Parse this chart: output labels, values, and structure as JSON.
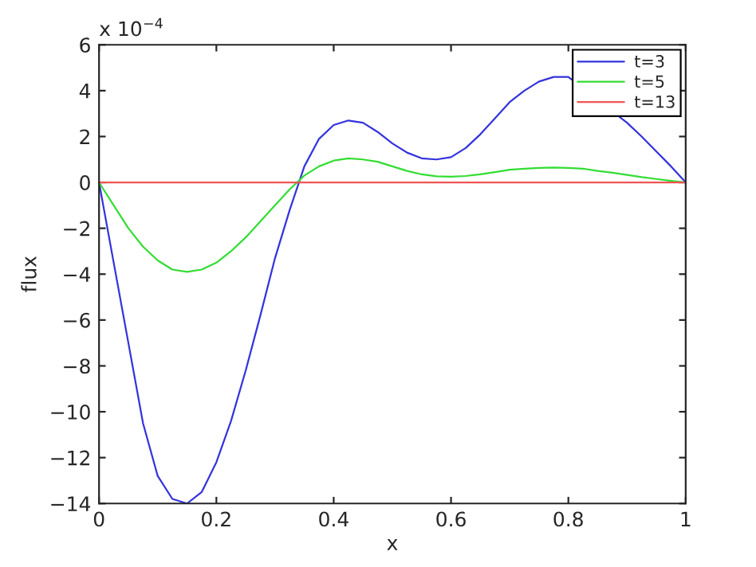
{
  "chart_data": {
    "type": "line",
    "xlabel": "x",
    "ylabel": "flux",
    "annotations": [
      "x 10$^{−4}$"
    ],
    "xlim": [
      0,
      1
    ],
    "xticks": [
      0,
      0.2,
      0.4,
      0.6,
      0.8,
      1
    ],
    "ylim": [
      -14,
      6
    ],
    "yticks": [
      {
        "value": -14,
        "label": "−14"
      },
      {
        "value": -12,
        "label": "−12"
      },
      {
        "value": -10,
        "label": "−10"
      },
      {
        "value": -8,
        "label": "−8"
      },
      {
        "value": -6,
        "label": "−6"
      },
      {
        "value": -4,
        "label": "−4"
      },
      {
        "value": -2,
        "label": "−2"
      },
      0,
      2,
      4,
      6
    ],
    "grid": false,
    "legend": "top right",
    "line_style": "solid",
    "series": [
      {
        "name": "t=3",
        "color": "#3333dd",
        "x": [
          0,
          0.025,
          0.05,
          0.075,
          0.1,
          0.125,
          0.15,
          0.175,
          0.2,
          0.225,
          0.25,
          0.275,
          0.3,
          0.325,
          0.35,
          0.375,
          0.4,
          0.425,
          0.45,
          0.475,
          0.5,
          0.525,
          0.55,
          0.575,
          0.6,
          0.625,
          0.65,
          0.675,
          0.7,
          0.725,
          0.75,
          0.775,
          0.8,
          0.825,
          0.85,
          0.875,
          0.9,
          0.925,
          0.95,
          0.975,
          1
        ],
        "values": [
          0,
          -3.5,
          -7,
          -10.5,
          -12.8,
          -13.8,
          -14.0,
          -13.5,
          -12.2,
          -10.4,
          -8.2,
          -5.8,
          -3.3,
          -1.2,
          0.7,
          1.9,
          2.5,
          2.7,
          2.6,
          2.2,
          1.7,
          1.3,
          1.05,
          1.0,
          1.1,
          1.5,
          2.1,
          2.8,
          3.5,
          4.0,
          4.4,
          4.6,
          4.6,
          null,
          null,
          null,
          2.6,
          2.0,
          1.35,
          0.7,
          0
        ]
      },
      {
        "name": "t=5",
        "color": "#33dd33",
        "x": [
          0,
          0.025,
          0.05,
          0.075,
          0.1,
          0.125,
          0.15,
          0.175,
          0.2,
          0.225,
          0.25,
          0.275,
          0.3,
          0.325,
          0.35,
          0.375,
          0.4,
          0.425,
          0.45,
          0.475,
          0.5,
          0.525,
          0.55,
          0.575,
          0.6,
          0.625,
          0.65,
          0.675,
          0.7,
          0.725,
          0.75,
          0.775,
          0.8,
          0.825,
          0.85,
          0.875,
          0.9,
          0.925,
          0.95,
          0.975,
          1
        ],
        "values": [
          0,
          -1.0,
          -2.0,
          -2.8,
          -3.4,
          -3.8,
          -3.9,
          -3.8,
          -3.5,
          -3.0,
          -2.4,
          -1.7,
          -1.0,
          -0.3,
          0.3,
          0.7,
          0.95,
          1.05,
          1.0,
          0.9,
          0.7,
          0.5,
          0.35,
          0.27,
          0.25,
          0.28,
          0.35,
          0.45,
          0.55,
          0.6,
          0.63,
          0.65,
          0.63,
          0.6,
          0.5,
          0.42,
          0.33,
          0.23,
          0.15,
          0.07,
          0
        ]
      },
      {
        "name": "t=13",
        "color": "#ee5555",
        "x": [
          0,
          1
        ],
        "values": [
          0,
          0
        ]
      }
    ]
  }
}
